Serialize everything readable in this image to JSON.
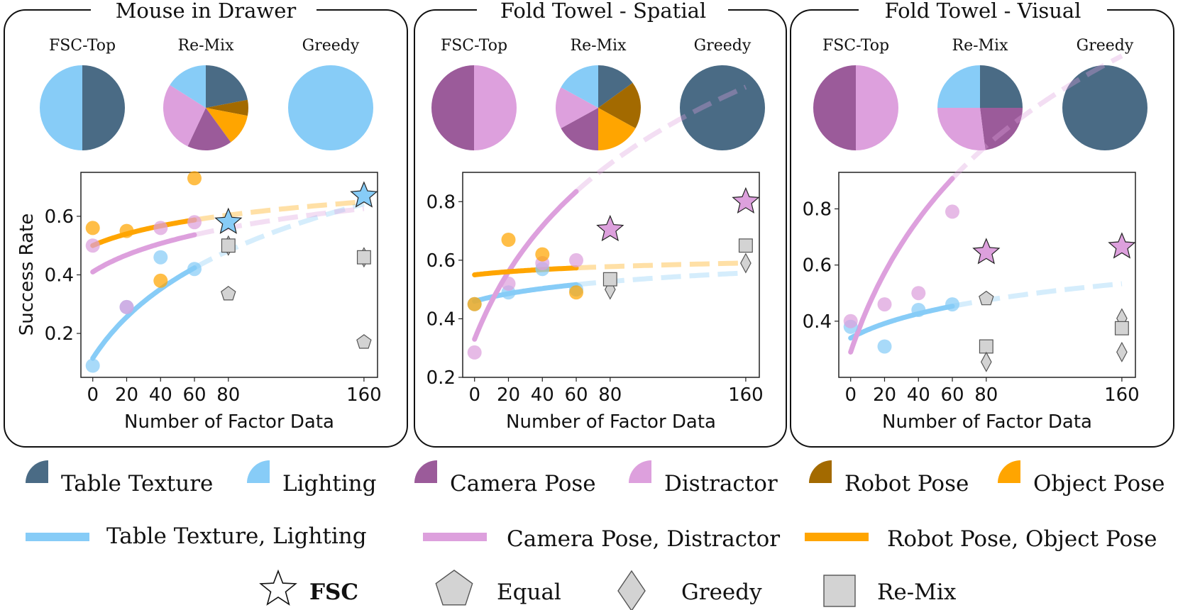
{
  "chart_data": [
    {
      "type": "scatter",
      "title": "Mouse in Drawer",
      "xlabel": "Number of Factor Data",
      "ylabel": "Success Rate",
      "xticks": [
        0,
        20,
        40,
        60,
        80,
        160
      ],
      "yticks": [
        0.2,
        0.4,
        0.6
      ],
      "xlim": [
        -7,
        168
      ],
      "ylim": [
        0.05,
        0.75
      ],
      "pies": [
        {
          "label": "FSC-Top",
          "slices": [
            {
              "factor": "table_texture",
              "value": 50
            },
            {
              "factor": "lighting",
              "value": 50
            }
          ]
        },
        {
          "label": "Re-Mix",
          "slices": [
            {
              "factor": "table_texture",
              "value": 22
            },
            {
              "factor": "robot_pose",
              "value": 6
            },
            {
              "factor": "object_pose",
              "value": 12
            },
            {
              "factor": "camera_pose",
              "value": 17
            },
            {
              "factor": "distractor",
              "value": 27
            },
            {
              "factor": "lighting",
              "value": 16
            }
          ]
        },
        {
          "label": "Greedy",
          "slices": [
            {
              "factor": "lighting",
              "value": 100
            }
          ]
        }
      ],
      "points": [
        {
          "group": "lighting",
          "x": 0,
          "y": 0.09
        },
        {
          "group": "lighting",
          "x": 20,
          "y": 0.29
        },
        {
          "group": "lighting",
          "x": 40,
          "y": 0.46
        },
        {
          "group": "lighting",
          "x": 60,
          "y": 0.42
        },
        {
          "group": "distractor",
          "x": 0,
          "y": 0.5
        },
        {
          "group": "distractor",
          "x": 20,
          "y": 0.29
        },
        {
          "group": "distractor",
          "x": 40,
          "y": 0.56
        },
        {
          "group": "distractor",
          "x": 60,
          "y": 0.58
        },
        {
          "group": "object_pose",
          "x": 0,
          "y": 0.56
        },
        {
          "group": "object_pose",
          "x": 20,
          "y": 0.55
        },
        {
          "group": "object_pose",
          "x": 40,
          "y": 0.38
        },
        {
          "group": "object_pose",
          "x": 60,
          "y": 0.73
        }
      ],
      "fits": [
        {
          "group": "lighting",
          "a": 0.115,
          "b": 0.3,
          "c": 0.03
        },
        {
          "group": "distractor",
          "a": 0.41,
          "b": 0.123,
          "c": 0.03
        },
        {
          "group": "object_pose",
          "a": 0.5,
          "b": 0.085,
          "c": 0.03
        }
      ],
      "markers": [
        {
          "method": "fsc",
          "x": 80,
          "y": 0.58,
          "factor": "lighting"
        },
        {
          "method": "fsc",
          "x": 160,
          "y": 0.67,
          "factor": "lighting"
        },
        {
          "method": "greedy",
          "x": 80,
          "y": 0.5
        },
        {
          "method": "remix",
          "x": 80,
          "y": 0.5
        },
        {
          "method": "equal",
          "x": 80,
          "y": 0.335
        },
        {
          "method": "greedy",
          "x": 160,
          "y": 0.46
        },
        {
          "method": "remix",
          "x": 160,
          "y": 0.46
        },
        {
          "method": "equal",
          "x": 160,
          "y": 0.17
        }
      ]
    },
    {
      "type": "scatter",
      "title": "Fold Towel - Spatial",
      "xlabel": "Number of Factor Data",
      "ylabel": "",
      "xticks": [
        0,
        20,
        40,
        60,
        80,
        160
      ],
      "yticks": [
        0.2,
        0.4,
        0.6,
        0.8
      ],
      "xlim": [
        -7,
        168
      ],
      "ylim": [
        0.2,
        0.9
      ],
      "pies": [
        {
          "label": "FSC-Top",
          "slices": [
            {
              "factor": "distractor",
              "value": 50
            },
            {
              "factor": "camera_pose",
              "value": 50
            }
          ]
        },
        {
          "label": "Re-Mix",
          "slices": [
            {
              "factor": "table_texture",
              "value": 15
            },
            {
              "factor": "robot_pose",
              "value": 18
            },
            {
              "factor": "object_pose",
              "value": 17
            },
            {
              "factor": "camera_pose",
              "value": 17
            },
            {
              "factor": "distractor",
              "value": 16
            },
            {
              "factor": "lighting",
              "value": 17
            }
          ]
        },
        {
          "label": "Greedy",
          "slices": [
            {
              "factor": "table_texture",
              "value": 100
            }
          ]
        }
      ],
      "points": [
        {
          "group": "lighting",
          "x": 0,
          "y": 0.45
        },
        {
          "group": "lighting",
          "x": 20,
          "y": 0.49
        },
        {
          "group": "lighting",
          "x": 40,
          "y": 0.57
        },
        {
          "group": "lighting",
          "x": 60,
          "y": 0.5
        },
        {
          "group": "distractor",
          "x": 0,
          "y": 0.285
        },
        {
          "group": "distractor",
          "x": 20,
          "y": 0.52
        },
        {
          "group": "distractor",
          "x": 40,
          "y": 0.59
        },
        {
          "group": "distractor",
          "x": 60,
          "y": 0.6
        },
        {
          "group": "object_pose",
          "x": 0,
          "y": 0.45
        },
        {
          "group": "object_pose",
          "x": 20,
          "y": 0.67
        },
        {
          "group": "object_pose",
          "x": 40,
          "y": 0.62
        },
        {
          "group": "object_pose",
          "x": 60,
          "y": 0.49
        }
      ],
      "fits": [
        {
          "group": "lighting",
          "a": 0.46,
          "b": 0.055,
          "c": 0.03
        },
        {
          "group": "distractor",
          "a": 0.33,
          "b": 0.49,
          "c": 0.03
        },
        {
          "group": "object_pose",
          "a": 0.55,
          "b": 0.023,
          "c": 0.03
        }
      ],
      "markers": [
        {
          "method": "fsc",
          "x": 80,
          "y": 0.705,
          "factor": "distractor"
        },
        {
          "method": "fsc",
          "x": 160,
          "y": 0.8,
          "factor": "distractor"
        },
        {
          "method": "greedy",
          "x": 80,
          "y": 0.5
        },
        {
          "method": "remix",
          "x": 80,
          "y": 0.535
        },
        {
          "method": "greedy",
          "x": 160,
          "y": 0.59
        },
        {
          "method": "remix",
          "x": 160,
          "y": 0.65
        }
      ]
    },
    {
      "type": "scatter",
      "title": "Fold Towel - Visual",
      "xlabel": "Number of Factor Data",
      "ylabel": "",
      "xticks": [
        0,
        20,
        40,
        60,
        80,
        160
      ],
      "yticks": [
        0.4,
        0.6,
        0.8
      ],
      "xlim": [
        -7,
        168
      ],
      "ylim": [
        0.2,
        0.93
      ],
      "pies": [
        {
          "label": "FSC-Top",
          "slices": [
            {
              "factor": "distractor",
              "value": 50
            },
            {
              "factor": "camera_pose",
              "value": 50
            }
          ]
        },
        {
          "label": "Re-Mix",
          "slices": [
            {
              "factor": "table_texture",
              "value": 25
            },
            {
              "factor": "camera_pose",
              "value": 23
            },
            {
              "factor": "distractor",
              "value": 27
            },
            {
              "factor": "lighting",
              "value": 25
            }
          ]
        },
        {
          "label": "Greedy",
          "slices": [
            {
              "factor": "table_texture",
              "value": 100
            }
          ]
        }
      ],
      "points": [
        {
          "group": "lighting",
          "x": 0,
          "y": 0.38
        },
        {
          "group": "lighting",
          "x": 20,
          "y": 0.31
        },
        {
          "group": "lighting",
          "x": 40,
          "y": 0.44
        },
        {
          "group": "lighting",
          "x": 60,
          "y": 0.46
        },
        {
          "group": "distractor",
          "x": 0,
          "y": 0.4
        },
        {
          "group": "distractor",
          "x": 20,
          "y": 0.46
        },
        {
          "group": "distractor",
          "x": 40,
          "y": 0.5
        },
        {
          "group": "distractor",
          "x": 60,
          "y": 0.79
        }
      ],
      "fits": [
        {
          "group": "lighting",
          "a": 0.34,
          "b": 0.11,
          "c": 0.03
        },
        {
          "group": "distractor",
          "a": 0.29,
          "b": 0.6,
          "c": 0.03
        }
      ],
      "markers": [
        {
          "method": "fsc",
          "x": 80,
          "y": 0.645,
          "factor": "distractor"
        },
        {
          "method": "fsc",
          "x": 160,
          "y": 0.665,
          "factor": "distractor"
        },
        {
          "method": "equal",
          "x": 80,
          "y": 0.48
        },
        {
          "method": "remix",
          "x": 80,
          "y": 0.31
        },
        {
          "method": "greedy",
          "x": 80,
          "y": 0.255
        },
        {
          "method": "greedy",
          "x": 160,
          "y": 0.41
        },
        {
          "method": "remix",
          "x": 160,
          "y": 0.375
        },
        {
          "method": "greedy",
          "x": 160,
          "y": 0.29
        }
      ]
    }
  ],
  "colors": {
    "table_texture": "#4a6b85",
    "lighting": "#87ccf7",
    "camera_pose": "#9b5b9a",
    "distractor": "#dda0dd",
    "robot_pose": "#a36a00",
    "object_pose": "#ffa500",
    "baseline_fill": "#d3d3d3",
    "baseline_edge": "#555555"
  },
  "legend": {
    "factors": [
      {
        "key": "table_texture",
        "label": "Table Texture"
      },
      {
        "key": "lighting",
        "label": "Lighting"
      },
      {
        "key": "camera_pose",
        "label": "Camera Pose"
      },
      {
        "key": "distractor",
        "label": "Distractor"
      },
      {
        "key": "robot_pose",
        "label": "Robot Pose"
      },
      {
        "key": "object_pose",
        "label": "Object Pose"
      }
    ],
    "fits": [
      {
        "key": "lighting",
        "label": "Table Texture, Lighting"
      },
      {
        "key": "distractor",
        "label": "Camera Pose, Distractor"
      },
      {
        "key": "object_pose",
        "label": "Robot Pose, Object Pose"
      }
    ],
    "methods": [
      {
        "key": "fsc",
        "label": "FSC"
      },
      {
        "key": "equal",
        "label": "Equal"
      },
      {
        "key": "greedy",
        "label": "Greedy"
      },
      {
        "key": "remix",
        "label": "Re-Mix"
      }
    ]
  }
}
